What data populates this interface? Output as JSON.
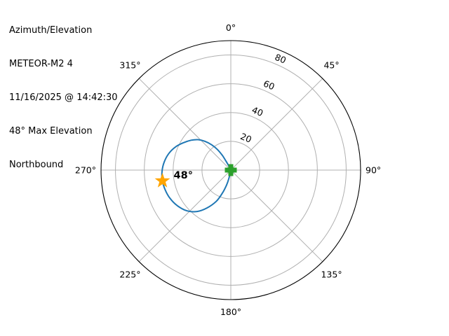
{
  "info_panel": {
    "lines": [
      "Azimuth/Elevation",
      "METEOR-M2 4",
      "11/16/2025 @ 14:42:30",
      "48° Max Elevation",
      "Northbound"
    ]
  },
  "colors": {
    "track": "#1f77b4",
    "start_marker": "#2ca02c",
    "max_elevation_marker": "#ffa500",
    "grid": "#b0b0b0",
    "outline": "#000000",
    "text": "#000000",
    "background": "#ffffff"
  },
  "chart_data": {
    "type": "line",
    "projection": "polar",
    "title": "Azimuth/Elevation",
    "azimuth_convention": "0° at top (North), increasing clockwise",
    "azimuth_ticks": [
      {
        "az": 0,
        "label": "0°"
      },
      {
        "az": 45,
        "label": "45°"
      },
      {
        "az": 90,
        "label": "90°"
      },
      {
        "az": 135,
        "label": "135°"
      },
      {
        "az": 180,
        "label": "180°"
      },
      {
        "az": 225,
        "label": "225°"
      },
      {
        "az": 270,
        "label": "270°"
      },
      {
        "az": 315,
        "label": "315°"
      }
    ],
    "radial_axis": {
      "min": 0,
      "max": 90,
      "ring_values": [
        20,
        40,
        60,
        80
      ],
      "ring_labels": [
        "20",
        "40",
        "60",
        "80"
      ],
      "label_angle_deg": 23.5,
      "label_rotation_deg": 22.5,
      "grid": true
    },
    "series": [
      {
        "name": "satellite-pass-track",
        "color": "#1f77b4",
        "line_width": 2,
        "points_az_el": [
          [
            190,
            0
          ],
          [
            193,
            6
          ],
          [
            196,
            11
          ],
          [
            200,
            17
          ],
          [
            205,
            24
          ],
          [
            212,
            31
          ],
          [
            219,
            37
          ],
          [
            227,
            41.5
          ],
          [
            236,
            44.5
          ],
          [
            245,
            46.5
          ],
          [
            253,
            47.5
          ],
          [
            261,
            48
          ],
          [
            269,
            47.7
          ],
          [
            277,
            46.5
          ],
          [
            285,
            44.5
          ],
          [
            293,
            41.5
          ],
          [
            300,
            38
          ],
          [
            307,
            34.5
          ],
          [
            313,
            31
          ],
          [
            318,
            27
          ],
          [
            323,
            22
          ],
          [
            327,
            17
          ],
          [
            330,
            12
          ],
          [
            332,
            7
          ],
          [
            334,
            3
          ],
          [
            335,
            0
          ]
        ]
      }
    ],
    "markers": [
      {
        "name": "pass-start",
        "shape": "filled-plus",
        "color": "#2ca02c",
        "az": 190,
        "el": 0,
        "size": 17
      },
      {
        "name": "max-elevation",
        "shape": "star",
        "color": "#ffa500",
        "az": 261,
        "el": 48,
        "size": 23,
        "annotation": "48°"
      }
    ],
    "annotations": [
      {
        "text": "48°",
        "bold": true,
        "attached_to": "max-elevation"
      }
    ],
    "legend": null
  }
}
